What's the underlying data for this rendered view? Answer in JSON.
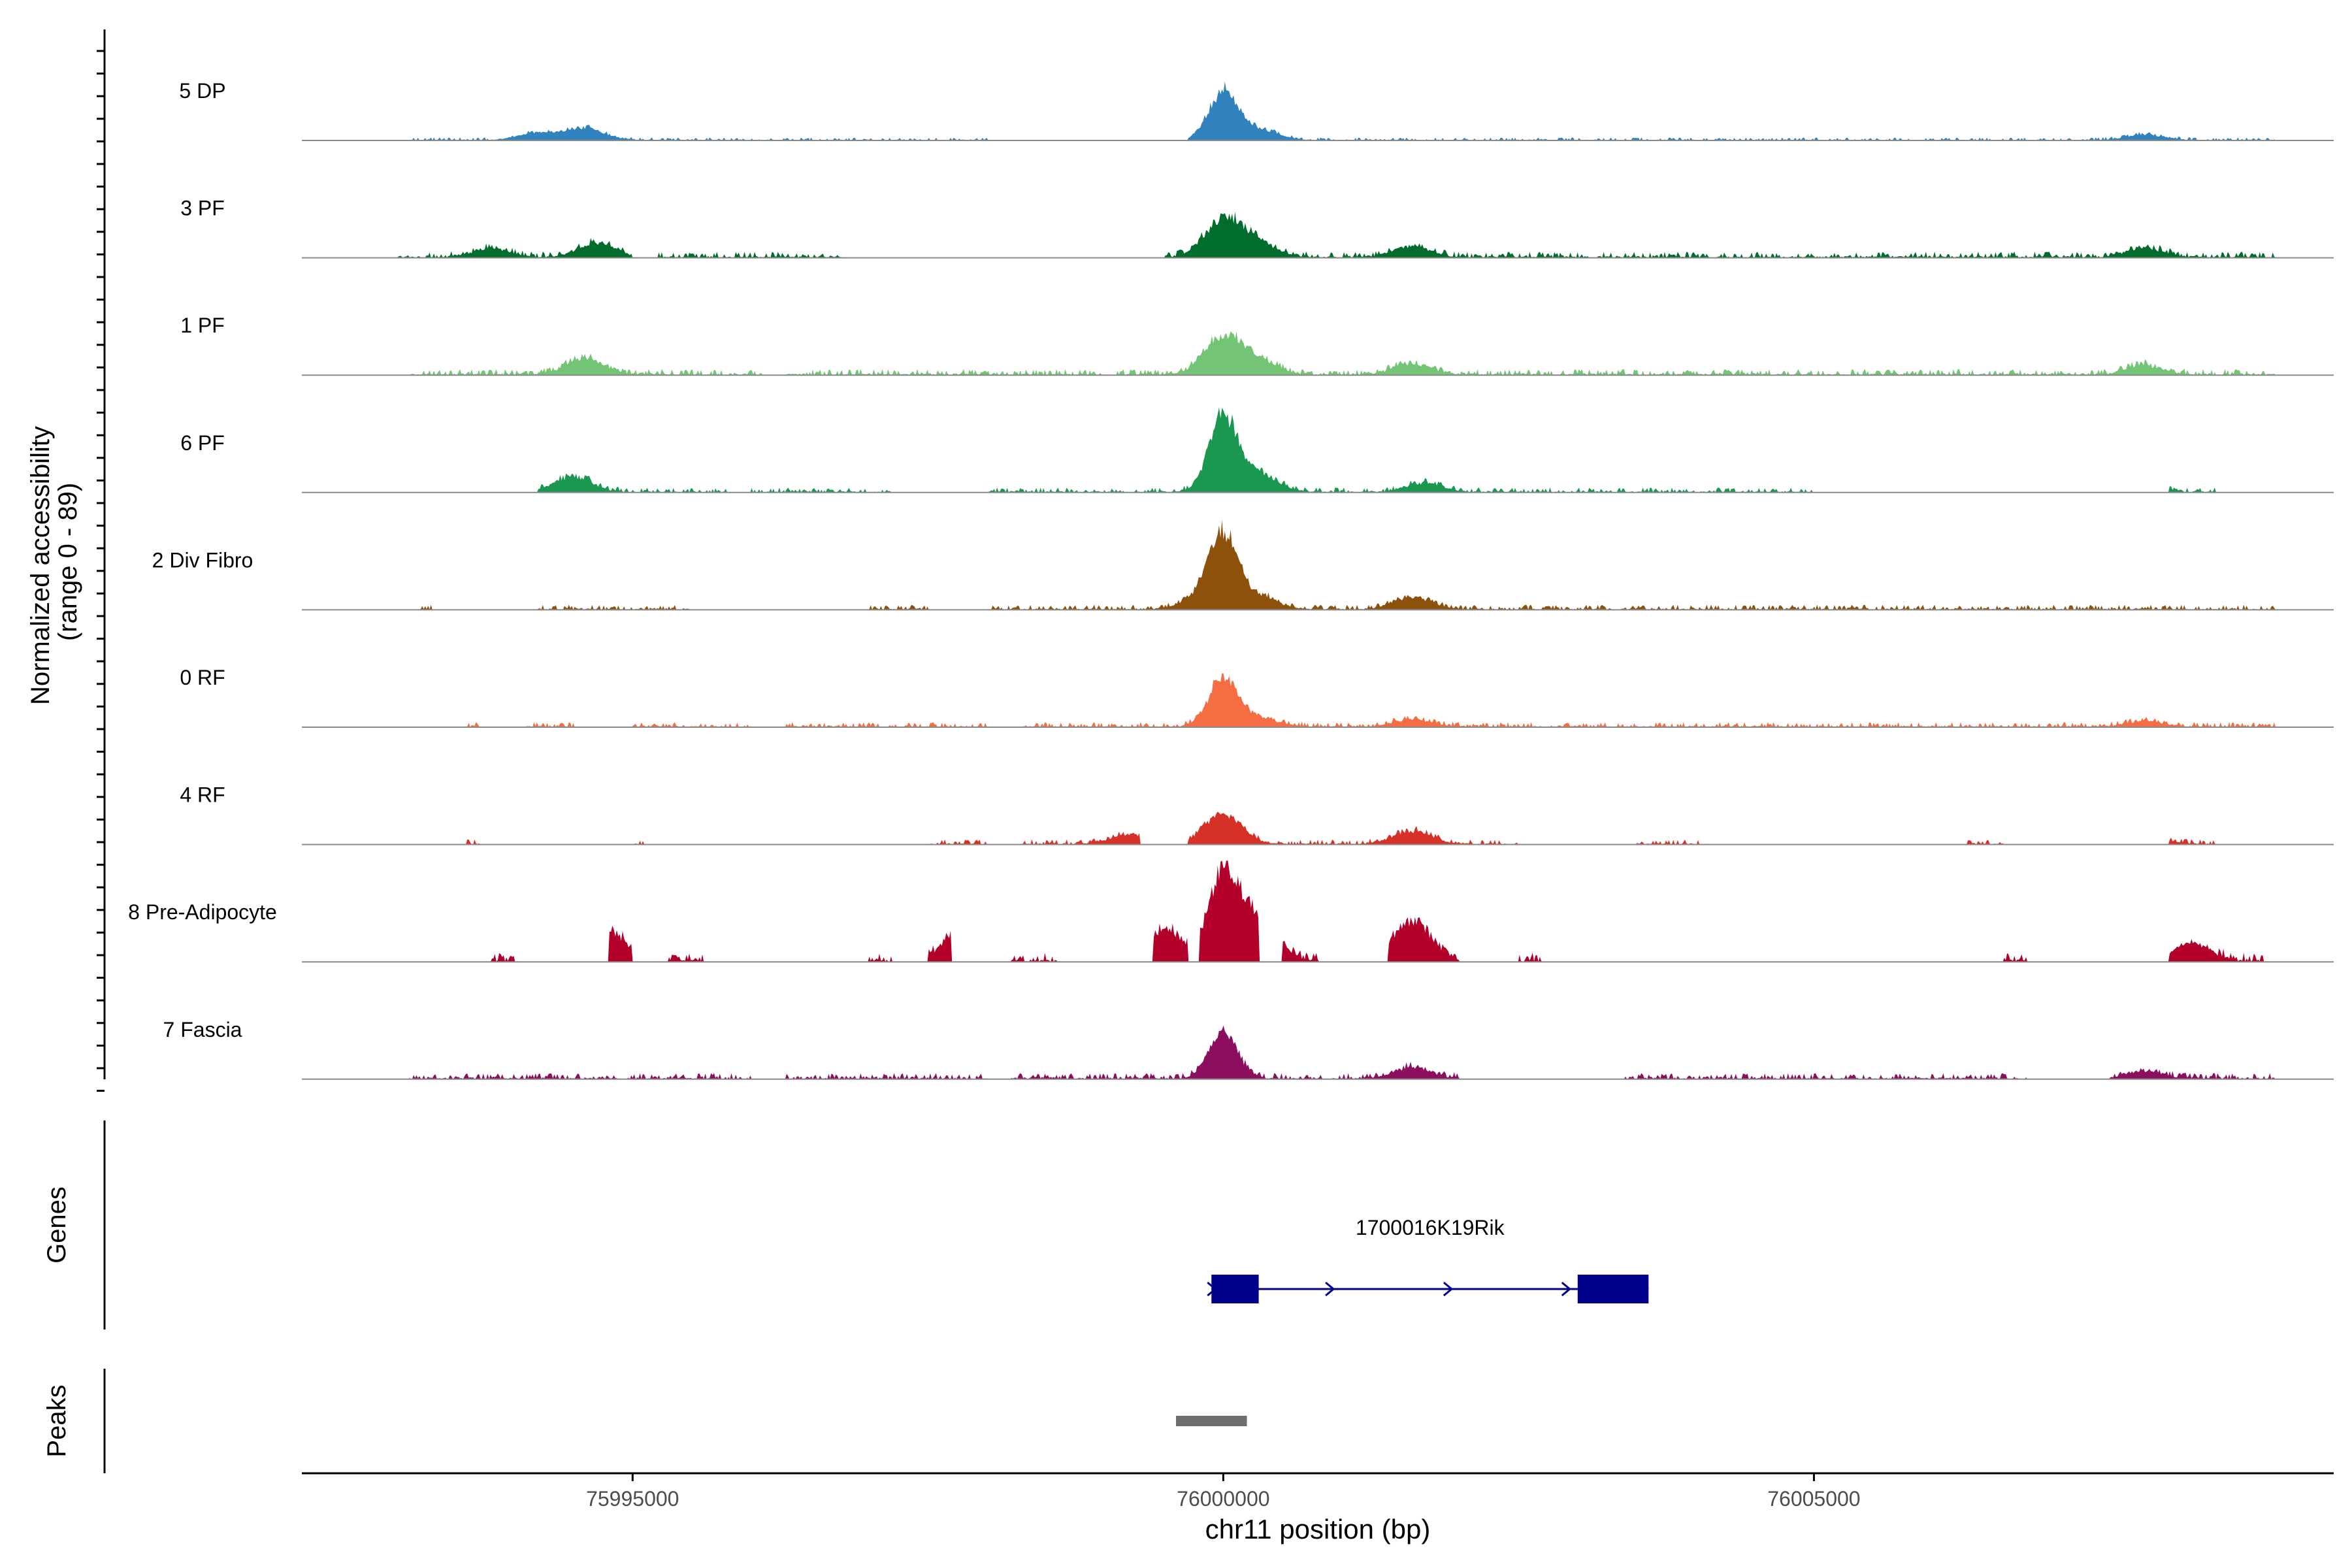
{
  "chart_data": {
    "type": "area",
    "coverage": {
      "ylabel_line1": "Normalized accessibility",
      "ylabel_line2": "(range 0 - 89)",
      "yrange": [
        0,
        89
      ],
      "tracks": [
        {
          "name": "5 DP",
          "color": "#3182BD",
          "spikes": [
            [
              75994200,
              0.08
            ],
            [
              75994600,
              0.14
            ],
            [
              75999300,
              0.06
            ],
            [
              76000000,
              0.55
            ],
            [
              76000300,
              0.12
            ],
            [
              76007800,
              0.06
            ]
          ],
          "noise": 0.03,
          "cov": [
            [
              75993100,
              75998000
            ],
            [
              75999700,
              76000500
            ],
            [
              76000500,
              76008900
            ]
          ]
        },
        {
          "name": "3 PF",
          "color": "#006D2C",
          "spikes": [
            [
              75993800,
              0.1
            ],
            [
              75994700,
              0.16
            ],
            [
              76000000,
              0.42
            ],
            [
              76000300,
              0.15
            ],
            [
              76001600,
              0.12
            ],
            [
              76007800,
              0.1
            ]
          ],
          "noise": 0.06,
          "cov": [
            [
              75993000,
              75995000
            ],
            [
              75995200,
              75996800
            ],
            [
              75999500,
              76008900
            ]
          ]
        },
        {
          "name": "1 PF",
          "color": "#74C476",
          "spikes": [
            [
              75994600,
              0.18
            ],
            [
              76000000,
              0.42
            ],
            [
              76000300,
              0.15
            ],
            [
              76001600,
              0.12
            ],
            [
              76007800,
              0.1
            ]
          ],
          "noise": 0.06,
          "cov": [
            [
              75993100,
              75996100
            ],
            [
              75996300,
              75999000
            ],
            [
              75999100,
              76008900
            ]
          ]
        },
        {
          "name": "6 PF",
          "color": "#1A9850",
          "spikes": [
            [
              75994500,
              0.17
            ],
            [
              76000000,
              0.85
            ],
            [
              76000300,
              0.2
            ],
            [
              76001700,
              0.1
            ],
            [
              76007800,
              0.06
            ]
          ],
          "noise": 0.05,
          "cov": [
            [
              75994200,
              75995800
            ],
            [
              75996000,
              75997200
            ],
            [
              75998000,
              76005000
            ],
            [
              76008000,
              76008400
            ]
          ]
        },
        {
          "name": "2 Div Fibro",
          "color": "#8C510A",
          "spikes": [
            [
              75999800,
              0.12
            ],
            [
              76000000,
              0.8
            ],
            [
              76000300,
              0.15
            ],
            [
              76001600,
              0.14
            ]
          ],
          "noise": 0.05,
          "cov": [
            [
              75993200,
              75993300
            ],
            [
              75994200,
              75995500
            ],
            [
              75997000,
              75997500
            ],
            [
              75998000,
              76000700
            ],
            [
              76000700,
              76008900
            ]
          ]
        },
        {
          "name": "0 RF",
          "color": "#F46D43",
          "spikes": [
            [
              76000000,
              0.55
            ],
            [
              76000300,
              0.1
            ],
            [
              76001600,
              0.08
            ],
            [
              76007800,
              0.06
            ]
          ],
          "noise": 0.05,
          "cov": [
            [
              75993600,
              75993700
            ],
            [
              75994100,
              75994500
            ],
            [
              75995000,
              75996000
            ],
            [
              75996300,
              75998000
            ],
            [
              75998300,
              76008900
            ]
          ]
        },
        {
          "name": "4 RF",
          "color": "#D73027",
          "spikes": [
            [
              75999200,
              0.1
            ],
            [
              76000000,
              0.33
            ],
            [
              76001600,
              0.15
            ],
            [
              76007800,
              0.1
            ]
          ],
          "noise": 0.05,
          "cov": [
            [
              75993600,
              75993700
            ],
            [
              75995000,
              75995100
            ],
            [
              75997500,
              75998000
            ],
            [
              75998300,
              75999300
            ],
            [
              75999700,
              76002500
            ],
            [
              76003500,
              76004100
            ],
            [
              76006300,
              76006600
            ],
            [
              76008000,
              76008400
            ]
          ]
        },
        {
          "name": "8 Pre-Adipocyte",
          "color": "#B2002A",
          "spikes": [
            [
              75994800,
              0.32
            ],
            [
              75997800,
              0.4
            ],
            [
              75999500,
              0.35
            ],
            [
              76000000,
              1.0
            ],
            [
              76000300,
              0.5
            ],
            [
              76001600,
              0.45
            ],
            [
              76008200,
              0.2
            ]
          ],
          "noise": 0.09,
          "cov": [
            [
              75993800,
              75994000
            ],
            [
              75994800,
              75995000
            ],
            [
              75995300,
              75995600
            ],
            [
              75997000,
              75997200
            ],
            [
              75997500,
              75997700
            ],
            [
              75998200,
              75998600
            ],
            [
              75999400,
              75999700
            ],
            [
              75999800,
              76000300
            ],
            [
              76000500,
              76000800
            ],
            [
              76001400,
              76002000
            ],
            [
              76002500,
              76002700
            ],
            [
              76006600,
              76006800
            ],
            [
              76008000,
              76008800
            ]
          ]
        },
        {
          "name": "7 Fascia",
          "color": "#8C0E5E",
          "spikes": [
            [
              76000000,
              0.52
            ],
            [
              76001600,
              0.12
            ],
            [
              76007800,
              0.08
            ]
          ],
          "noise": 0.06,
          "cov": [
            [
              75993100,
              75996000
            ],
            [
              75996300,
              75998000
            ],
            [
              75998200,
              76002000
            ],
            [
              76003400,
              76006800
            ],
            [
              76007500,
              76008900
            ]
          ]
        }
      ]
    },
    "genes": {
      "ylabel": "Genes",
      "gene_name": "1700016K19Rik",
      "start": 75999900,
      "end": 76003600,
      "exons": [
        [
          75999900,
          76000300
        ],
        [
          76003000,
          76003600
        ]
      ],
      "strand": "+",
      "color": "#00008B"
    },
    "peaks": {
      "ylabel": "Peaks",
      "regions": [
        [
          75999600,
          76000200
        ]
      ],
      "color": "#6E6E6E"
    },
    "xaxis": {
      "label": "chr11 position (bp)",
      "range": [
        75992200,
        76009400
      ],
      "ticks": [
        75995000,
        76000000,
        76005000
      ],
      "tick_labels": [
        "75995000",
        "76000000",
        "76005000"
      ]
    }
  }
}
